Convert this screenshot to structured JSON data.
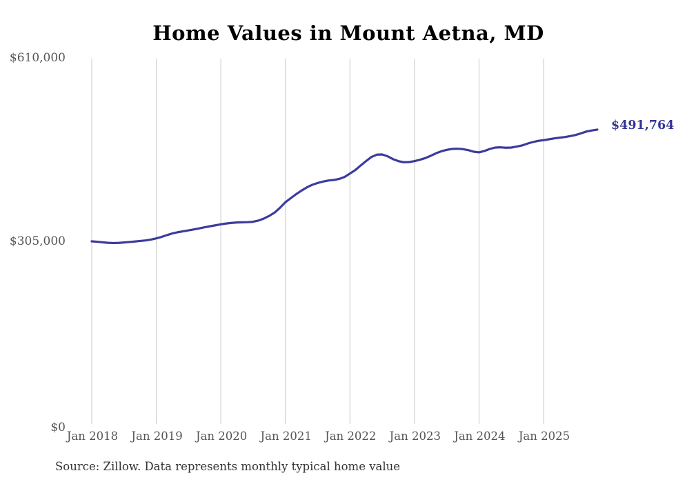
{
  "chart": {
    "title": "Home Values in Mount Aetna, MD",
    "latest_value_label": "$491,764",
    "source": "Source: Zillow. Data represents monthly typical home value",
    "colors": {
      "line": "#3b3b9d",
      "latest_label": "#333399",
      "gridline": "#c9c9c9",
      "axis_text": "#555555",
      "title_text": "#000000",
      "source_text": "#333333",
      "background": "#ffffff"
    }
  },
  "chart_data": {
    "type": "line",
    "title": "Home Values in Mount Aetna, MD",
    "xlabel": "",
    "ylabel": "",
    "ylim": [
      0,
      610000
    ],
    "grid": "vertical-years-only",
    "legend": "none",
    "annotation": "$491,764",
    "latest_value": 491764,
    "x_ticks": [
      "Jan 2018",
      "Jan 2019",
      "Jan 2020",
      "Jan 2021",
      "Jan 2022",
      "Jan 2023",
      "Jan 2024",
      "Jan 2025"
    ],
    "y_ticks": [
      {
        "label": "$610,000",
        "value": 610000
      },
      {
        "label": "$305,000",
        "value": 305000
      },
      {
        "label": "$0",
        "value": 0
      }
    ],
    "series": [
      {
        "name": "Typical home value (monthly)",
        "start_month": "Jan 2018",
        "end_month": "Nov 2025",
        "values": [
          305600,
          304900,
          304000,
          303100,
          302800,
          303000,
          303700,
          304500,
          305300,
          306200,
          307100,
          308500,
          310500,
          313000,
          316000,
          318800,
          320800,
          322300,
          323900,
          325500,
          327200,
          329000,
          330700,
          332300,
          334000,
          335300,
          336300,
          337000,
          337300,
          337500,
          338200,
          340200,
          343500,
          348000,
          353500,
          361500,
          370700,
          377500,
          384100,
          390100,
          395500,
          399800,
          402800,
          405200,
          406900,
          407800,
          409600,
          412800,
          418500,
          424300,
          432000,
          439200,
          446100,
          450000,
          450300,
          447300,
          442600,
          439200,
          437400,
          437700,
          439200,
          441500,
          444200,
          448000,
          452300,
          455700,
          458000,
          459500,
          459900,
          459200,
          457600,
          454900,
          453800,
          456100,
          459500,
          461800,
          462200,
          461500,
          461800,
          463400,
          465300,
          468400,
          471000,
          473000,
          474100,
          475600,
          477100,
          478300,
          479400,
          481000,
          482900,
          485600,
          488600,
          490300,
          491764
        ]
      }
    ]
  }
}
